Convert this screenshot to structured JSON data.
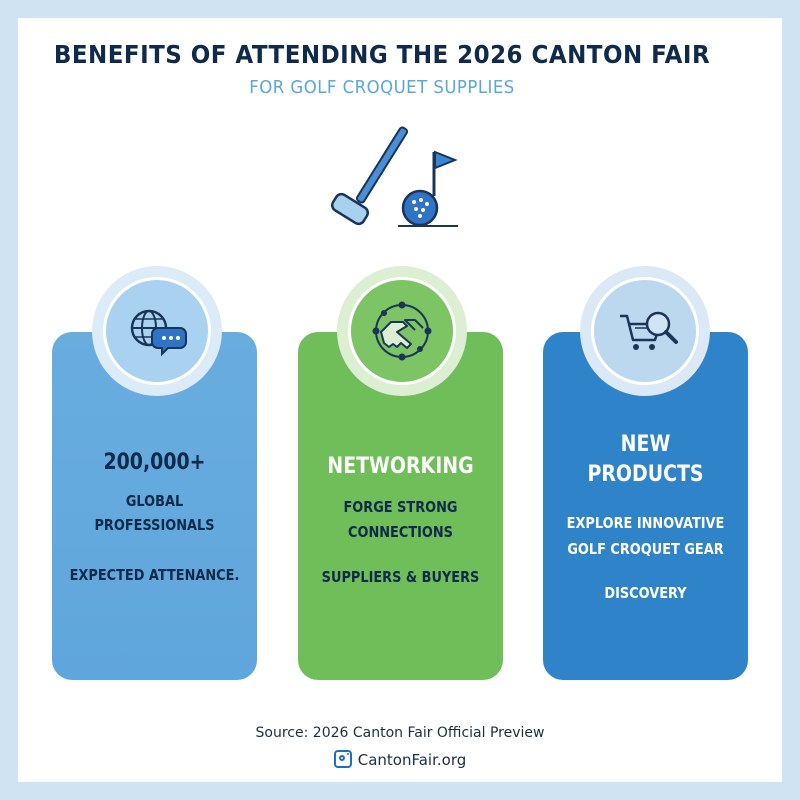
{
  "header": {
    "title": "BENEFITS OF ATTENDING THE 2026 CANTON FAIR",
    "subtitle": "FOR GOLF CROQUET SUPPLIES"
  },
  "icons": {
    "hero": "golf-croquet-mallet-ball-flag-icon",
    "card1": "globe-chat-icon",
    "card2": "handshake-network-icon",
    "card3": "cart-magnifier-icon",
    "footer": "instagram-icon"
  },
  "colors": {
    "navy": "#0f2a4a",
    "light_blue": "#5fa6dc",
    "green": "#6fbe5a",
    "blue": "#2f83c9"
  },
  "cards": [
    {
      "headline": "200,000+",
      "line1": "GLOBAL",
      "line2": "PROFESSIONALS",
      "line3": "EXPECTED ATTENANCE."
    },
    {
      "headline": "NETWORKING",
      "line1": "FORGE STRONG",
      "line2": "CONNECTIONS",
      "line3": "SUPPLIERS & BUYERS"
    },
    {
      "headline_line1": "NEW",
      "headline_line2": "PRODUCTS",
      "line1": "EXPLORE INNOVATIVE",
      "line2": "GOLF CROQUET GEAR",
      "line3": "DISCOVERY"
    }
  ],
  "footer": {
    "source": "Source: 2026 Canton Fair Official Preview",
    "site": "CantonFair.org"
  }
}
